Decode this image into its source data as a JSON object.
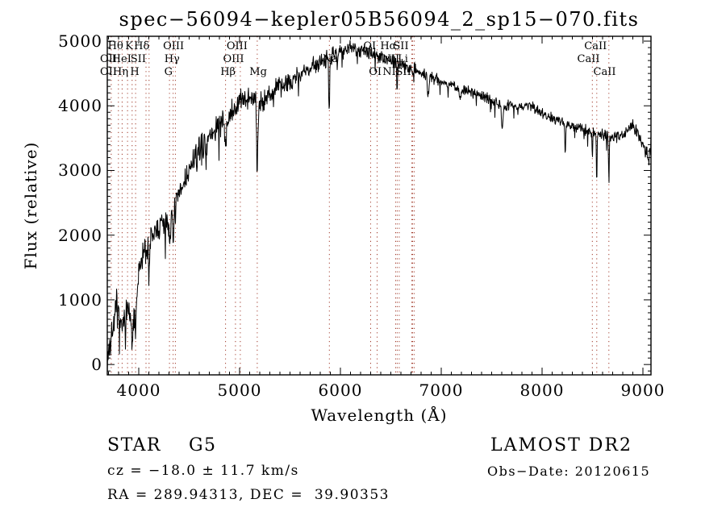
{
  "title": "spec−56094−kepler05B56094_2_sp15−070.fits",
  "info": {
    "class_label": "STAR    G5",
    "survey": "LAMOST DR2",
    "cz": "cz = −18.0 ± 11.7 km/s",
    "obs_date": "Obs−Date: 20120615",
    "radec": "RA = 289.94313, DEC =  39.90353"
  },
  "chart_data": {
    "type": "line",
    "title": "spec−56094−kepler05B56094_2_sp15−070.fits",
    "xlabel": "Wavelength (Å)",
    "ylabel": "Flux (relative)",
    "xlim": [
      3688,
      9080
    ],
    "ylim": [
      -160,
      5075
    ],
    "x_ticks": [
      4000,
      5000,
      6000,
      7000,
      8000,
      9000
    ],
    "y_ticks": [
      0,
      1000,
      2000,
      3000,
      4000,
      5000
    ],
    "x_minor_step": 100,
    "y_minor_step": 100,
    "grid": false,
    "line_color": "#000000",
    "spectral_line_color": "#a03828",
    "noise_seed": 7,
    "sample_step": 4,
    "spectral_lines": [
      3727,
      3798,
      3835,
      3889,
      3934,
      3969,
      4072,
      4102,
      4305,
      4341,
      4363,
      4861,
      4959,
      5007,
      5175,
      5890,
      6300,
      6364,
      6548,
      6563,
      6583,
      6708,
      6716,
      6731,
      8498,
      8542,
      8662
    ],
    "line_labels": [
      {
        "t": "Hθ",
        "wl": 3770,
        "row": 1
      },
      {
        "t": "K",
        "wl": 3905,
        "row": 1
      },
      {
        "t": "Hδ",
        "wl": 4030,
        "row": 1
      },
      {
        "t": "OIII",
        "wl": 4345,
        "row": 1
      },
      {
        "t": "OIII",
        "wl": 4975,
        "row": 1
      },
      {
        "t": "OI",
        "wl": 6290,
        "row": 1
      },
      {
        "t": "Hα",
        "wl": 6475,
        "row": 1
      },
      {
        "t": "SII",
        "wl": 6600,
        "row": 1
      },
      {
        "t": "CaII",
        "wl": 8530,
        "row": 1
      },
      {
        "t": "OII",
        "wl": 3700,
        "row": 2
      },
      {
        "t": "HeI",
        "wl": 3830,
        "row": 2
      },
      {
        "t": "SII",
        "wl": 3995,
        "row": 2
      },
      {
        "t": "Hγ",
        "wl": 4330,
        "row": 2
      },
      {
        "t": "OIII",
        "wl": 4940,
        "row": 2
      },
      {
        "t": "Na",
        "wl": 5900,
        "row": 2
      },
      {
        "t": "NII",
        "wl": 6500,
        "row": 2
      },
      {
        "t": "Li",
        "wl": 6620,
        "row": 2
      },
      {
        "t": "CaII",
        "wl": 8460,
        "row": 2
      },
      {
        "t": "OII",
        "wl": 3700,
        "row": 3
      },
      {
        "t": "Hη",
        "wl": 3820,
        "row": 3
      },
      {
        "t": "H",
        "wl": 3960,
        "row": 3
      },
      {
        "t": "G",
        "wl": 4295,
        "row": 3
      },
      {
        "t": "Hβ",
        "wl": 4885,
        "row": 3
      },
      {
        "t": "Mg",
        "wl": 5185,
        "row": 3
      },
      {
        "t": "OI",
        "wl": 6345,
        "row": 3
      },
      {
        "t": "NII",
        "wl": 6505,
        "row": 3
      },
      {
        "t": "SII",
        "wl": 6625,
        "row": 3
      },
      {
        "t": "CaII",
        "wl": 8620,
        "row": 3
      }
    ],
    "envelope": [
      [
        3688,
        100,
        300
      ],
      [
        3720,
        350,
        380
      ],
      [
        3750,
        600,
        320
      ],
      [
        3780,
        950,
        260
      ],
      [
        3805,
        750,
        280
      ],
      [
        3830,
        550,
        260
      ],
      [
        3860,
        700,
        260
      ],
      [
        3890,
        850,
        260
      ],
      [
        3915,
        750,
        240
      ],
      [
        3940,
        620,
        240
      ],
      [
        3965,
        800,
        240
      ],
      [
        4000,
        1350,
        280
      ],
      [
        4040,
        1750,
        280
      ],
      [
        4090,
        1800,
        280
      ],
      [
        4140,
        2000,
        300
      ],
      [
        4190,
        2100,
        300
      ],
      [
        4240,
        2150,
        300
      ],
      [
        4290,
        2250,
        300
      ],
      [
        4340,
        2350,
        300
      ],
      [
        4400,
        2600,
        300
      ],
      [
        4460,
        2850,
        300
      ],
      [
        4520,
        3050,
        280
      ],
      [
        4580,
        3250,
        280
      ],
      [
        4650,
        3400,
        280
      ],
      [
        4720,
        3550,
        260
      ],
      [
        4790,
        3700,
        260
      ],
      [
        4860,
        3750,
        250
      ],
      [
        4930,
        3900,
        240
      ],
      [
        5000,
        4050,
        230
      ],
      [
        5070,
        4150,
        230
      ],
      [
        5140,
        4100,
        250
      ],
      [
        5210,
        4050,
        230
      ],
      [
        5280,
        4150,
        220
      ],
      [
        5350,
        4250,
        210
      ],
      [
        5420,
        4300,
        210
      ],
      [
        5490,
        4380,
        200
      ],
      [
        5560,
        4450,
        200
      ],
      [
        5630,
        4520,
        190
      ],
      [
        5700,
        4580,
        190
      ],
      [
        5770,
        4650,
        180
      ],
      [
        5840,
        4720,
        170
      ],
      [
        5910,
        4760,
        170
      ],
      [
        5980,
        4820,
        160
      ],
      [
        6050,
        4900,
        170
      ],
      [
        6120,
        4920,
        170
      ],
      [
        6190,
        4870,
        150
      ],
      [
        6260,
        4820,
        150
      ],
      [
        6330,
        4790,
        150
      ],
      [
        6400,
        4760,
        140
      ],
      [
        6470,
        4720,
        140
      ],
      [
        6540,
        4680,
        130
      ],
      [
        6610,
        4640,
        130
      ],
      [
        6680,
        4600,
        120
      ],
      [
        6750,
        4550,
        120
      ],
      [
        6820,
        4500,
        120
      ],
      [
        6890,
        4450,
        120
      ],
      [
        6960,
        4410,
        110
      ],
      [
        7030,
        4360,
        110
      ],
      [
        7100,
        4320,
        110
      ],
      [
        7170,
        4280,
        110
      ],
      [
        7240,
        4240,
        100
      ],
      [
        7310,
        4200,
        100
      ],
      [
        7380,
        4160,
        100
      ],
      [
        7450,
        4120,
        100
      ],
      [
        7520,
        4080,
        100
      ],
      [
        7590,
        4040,
        110
      ],
      [
        7660,
        4010,
        100
      ],
      [
        7730,
        3990,
        100
      ],
      [
        7800,
        3990,
        100
      ],
      [
        7870,
        4010,
        100
      ],
      [
        7940,
        3950,
        100
      ],
      [
        8010,
        3890,
        100
      ],
      [
        8080,
        3830,
        100
      ],
      [
        8150,
        3780,
        100
      ],
      [
        8220,
        3730,
        110
      ],
      [
        8290,
        3690,
        110
      ],
      [
        8360,
        3660,
        110
      ],
      [
        8430,
        3630,
        110
      ],
      [
        8500,
        3600,
        110
      ],
      [
        8570,
        3570,
        110
      ],
      [
        8640,
        3540,
        110
      ],
      [
        8710,
        3520,
        110
      ],
      [
        8780,
        3540,
        120
      ],
      [
        8850,
        3620,
        120
      ],
      [
        8910,
        3700,
        130
      ],
      [
        8960,
        3560,
        140
      ],
      [
        9010,
        3420,
        160
      ],
      [
        9050,
        3100,
        250
      ],
      [
        9080,
        3350,
        250
      ]
    ],
    "absorption_lines": [
      [
        3934,
        450,
        5
      ],
      [
        3969,
        420,
        5
      ],
      [
        4102,
        550,
        5
      ],
      [
        4305,
        350,
        6
      ],
      [
        4341,
        600,
        5
      ],
      [
        4861,
        500,
        6
      ],
      [
        5175,
        1050,
        6
      ],
      [
        5890,
        820,
        4
      ],
      [
        6563,
        520,
        4
      ],
      [
        6870,
        330,
        7
      ],
      [
        7190,
        180,
        9
      ],
      [
        7605,
        380,
        8
      ],
      [
        8230,
        420,
        4
      ],
      [
        8498,
        350,
        4
      ],
      [
        8542,
        800,
        3.5
      ],
      [
        8662,
        680,
        3.5
      ]
    ]
  }
}
